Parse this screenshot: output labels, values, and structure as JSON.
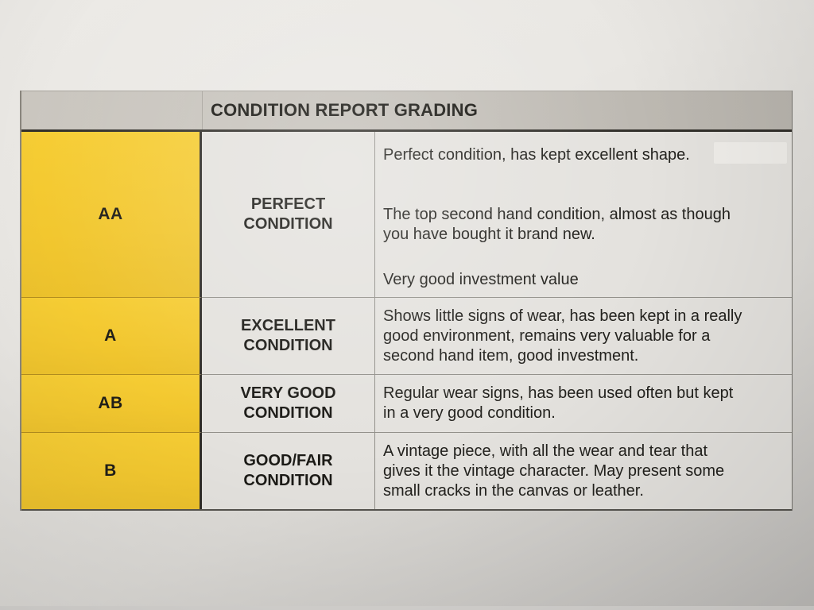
{
  "document": {
    "header": {
      "title": "CONDITION REPORT GRADING"
    },
    "grades": [
      {
        "grade": "AA",
        "condition": "PERFECT CONDITION",
        "description": [
          "Perfect condition, has kept excellent shape.",
          "The top second hand condition, almost as though you have bought it brand new.",
          "Very good investment value"
        ]
      },
      {
        "grade": "A",
        "condition": "EXCELLENT CONDITION",
        "description": [
          "Shows little signs of wear, has been kept in a really good environment, remains very valuable for a second hand item, good investment."
        ]
      },
      {
        "grade": "AB",
        "condition": "VERY GOOD CONDITION",
        "description": [
          "Regular wear signs, has been used often but kept in a very good condition."
        ]
      },
      {
        "grade": "B",
        "condition": "GOOD/FAIR CONDITION",
        "description": [
          "A vintage piece, with all the wear and tear that gives it the vintage character. May present some small cracks in the canvas or leather."
        ]
      }
    ],
    "colors": {
      "grade_cell": "#f2c72f",
      "header_band": "#c2beb7",
      "cell_background": "#e4e2de",
      "paper": "#e8e6e2",
      "text": "#1d1c18",
      "strong_border": "#32302b"
    }
  }
}
